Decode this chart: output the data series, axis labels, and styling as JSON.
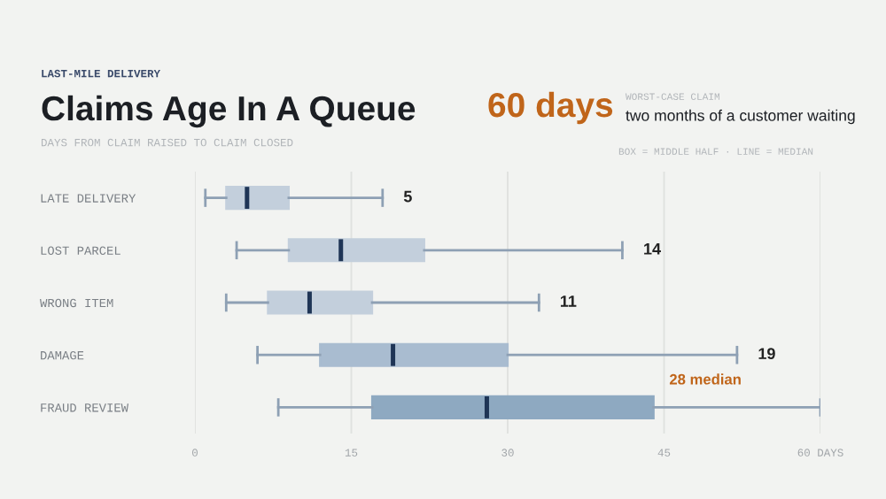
{
  "chart_data": {
    "type": "box",
    "orientation": "horizontal",
    "title": "Claims Age In A Queue",
    "subtitle": "DAYS FROM CLAIM RAISED TO CLAIM CLOSED",
    "annotations": [
      "LAST-MILE DELIVERY",
      "60 days",
      "WORST-CASE CLAIM",
      "two months of a customer waiting",
      "BOX = MIDDLE HALF · LINE = MEDIAN"
    ],
    "categories": [
      "LATE DELIVERY",
      "LOST PARCEL",
      "WRONG ITEM",
      "DAMAGE",
      "FRAUD REVIEW"
    ],
    "boxes": [
      {
        "low": 1,
        "q1": 3,
        "median": 5,
        "q3": 9,
        "high": 18
      },
      {
        "low": 4,
        "q1": 9,
        "median": 14,
        "q3": 22,
        "high": 41
      },
      {
        "low": 3,
        "q1": 7,
        "median": 11,
        "q3": 17,
        "high": 33
      },
      {
        "low": 6,
        "q1": 12,
        "median": 19,
        "q3": 30,
        "high": 52
      },
      {
        "low": 8,
        "q1": 17,
        "median": 28,
        "q3": 44,
        "high": 60
      }
    ],
    "colors": [
      "#c3cfdc",
      "#c3cfdc",
      "#c3cfdc",
      "#a9bcd0",
      "#8ea9c1"
    ],
    "value_labels": [
      "5",
      "14",
      "11",
      "19",
      "28 median"
    ],
    "xlim": [
      0,
      60
    ],
    "xticks": [
      0,
      15,
      30,
      45,
      {
        "value": 60,
        "label": "60 DAYS"
      }
    ],
    "grid": "x"
  }
}
